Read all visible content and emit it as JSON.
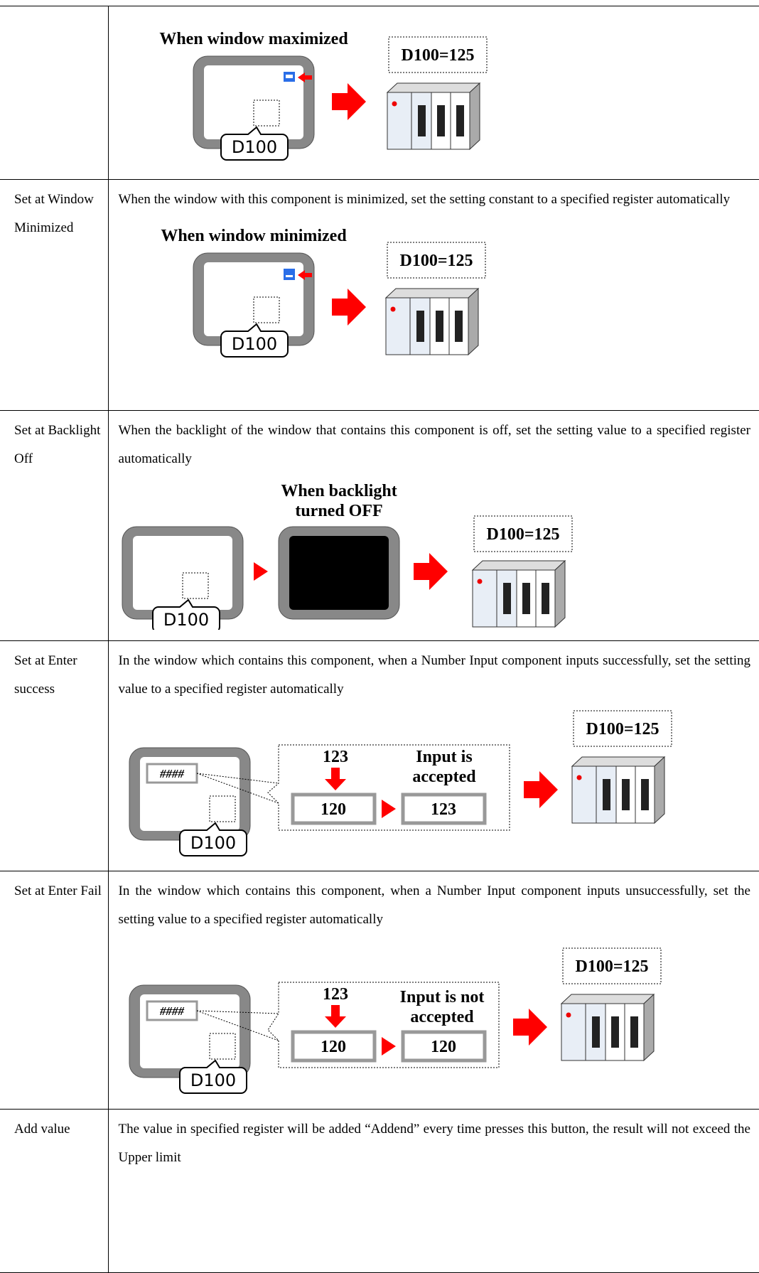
{
  "rows": [
    {
      "diagram": {
        "caption": "When window maximized",
        "result": "D100=125",
        "address": "D100"
      }
    },
    {
      "label": "Set at Window Minimized",
      "description": "When the window with this component is minimized, set the setting constant to a specified register automatically",
      "diagram": {
        "caption": "When window minimized",
        "result": "D100=125",
        "address": "D100"
      }
    },
    {
      "label": "Set at Backlight Off",
      "description": "When the backlight of the window that contains this component is off, set the setting value to a specified register automatically",
      "diagram": {
        "caption_lines": [
          "When backlight",
          "turned OFF"
        ],
        "result": "D100=125",
        "address": "D100"
      }
    },
    {
      "label": "Set at Enter success",
      "description": "In the window which contains this component, when a Number Input component inputs successfully, set the setting value to a specified register automatically",
      "diagram": {
        "field": "####",
        "input": "123",
        "before": "120",
        "status_lines": [
          "Input is",
          "accepted"
        ],
        "after": "123",
        "result": "D100=125",
        "address": "D100"
      }
    },
    {
      "label": "Set at Enter Fail",
      "description": "In the window which contains this component, when a Number Input component inputs unsuccessfully, set the setting value to a specified register automatically",
      "diagram": {
        "field": "####",
        "input": "123",
        "before": "120",
        "status_lines": [
          "Input is not",
          "accepted"
        ],
        "after": "120",
        "result": "D100=125",
        "address": "D100"
      }
    },
    {
      "label": "Add value",
      "description": "The value in specified register will be added “Addend” every time presses this button, the result will not exceed the Upper limit"
    }
  ]
}
